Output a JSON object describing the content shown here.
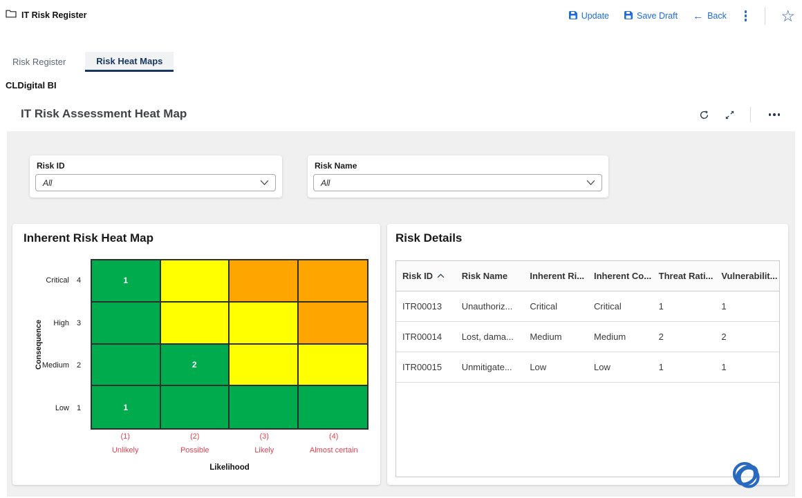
{
  "window": {
    "title": "IT Risk Register"
  },
  "toolbar": {
    "update_label": "Update",
    "save_draft_label": "Save Draft",
    "back_label": "Back",
    "back_arrow": "←"
  },
  "tabs": {
    "risk_register": "Risk Register",
    "risk_heat_maps": "Risk Heat Maps"
  },
  "app_label": "CLDigital BI",
  "page": {
    "title": "IT Risk Assessment Heat Map"
  },
  "filters": {
    "risk_id": {
      "label": "Risk ID",
      "value": "All"
    },
    "risk_name": {
      "label": "Risk Name",
      "value": "All"
    }
  },
  "chart_data": {
    "type": "heatmap",
    "title": "Inherent Risk Heat Map",
    "xlabel": "Likelihood",
    "ylabel": "Consequence",
    "x_categories": [
      {
        "num": "(1)",
        "label": "Unlikely"
      },
      {
        "num": "(2)",
        "label": "Possible"
      },
      {
        "num": "(3)",
        "label": "Likely"
      },
      {
        "num": "(4)",
        "label": "Almost certain"
      }
    ],
    "y_categories": [
      {
        "label": "Critical",
        "num": "4"
      },
      {
        "label": "High",
        "num": "3"
      },
      {
        "label": "Medium",
        "num": "2"
      },
      {
        "label": "Low",
        "num": "1"
      }
    ],
    "cells": [
      [
        {
          "color": "green",
          "count": "1"
        },
        {
          "color": "yellow",
          "count": ""
        },
        {
          "color": "orange",
          "count": ""
        },
        {
          "color": "orange",
          "count": ""
        }
      ],
      [
        {
          "color": "green",
          "count": ""
        },
        {
          "color": "yellow",
          "count": ""
        },
        {
          "color": "yellow",
          "count": ""
        },
        {
          "color": "orange",
          "count": ""
        }
      ],
      [
        {
          "color": "green",
          "count": ""
        },
        {
          "color": "green",
          "count": "2"
        },
        {
          "color": "yellow",
          "count": ""
        },
        {
          "color": "yellow",
          "count": ""
        }
      ],
      [
        {
          "color": "green",
          "count": "1"
        },
        {
          "color": "green",
          "count": ""
        },
        {
          "color": "green",
          "count": ""
        },
        {
          "color": "green",
          "count": ""
        }
      ]
    ],
    "palette": {
      "green": "#00ab4e",
      "yellow": "#ffff00",
      "orange": "#ffa500"
    },
    "axis_label_color": "#e8404e"
  },
  "risk_details": {
    "title": "Risk Details",
    "columns": [
      "Risk ID",
      "Risk Name",
      "Inherent Ri...",
      "Inherent Co...",
      "Threat Rati...",
      "Vulnerabilit..."
    ],
    "rows": [
      [
        "ITR00013",
        "Unauthoriz...",
        "Critical",
        "Critical",
        "1",
        "1"
      ],
      [
        "ITR00014",
        "Lost, dama...",
        "Medium",
        "Medium",
        "2",
        "2"
      ],
      [
        "ITR00015",
        "Unmitigate...",
        "Low",
        "Low",
        "1",
        "1"
      ]
    ],
    "sort_column_index": 0,
    "sort_direction": "asc"
  },
  "colors": {
    "accent_blue": "#1e6be0",
    "tab_active_navy": "#17365f"
  }
}
